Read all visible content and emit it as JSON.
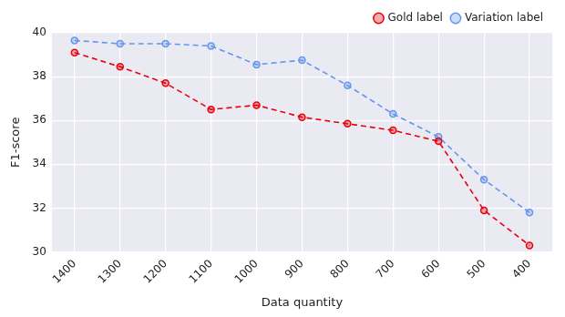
{
  "chart_data": {
    "type": "line",
    "x_label": "Data quantity",
    "y_label": "F1-score",
    "categories": [
      "1400",
      "1300",
      "1200",
      "1100",
      "1000",
      "900",
      "800",
      "700",
      "600",
      "500",
      "400"
    ],
    "series": [
      {
        "name": "Gold label",
        "color": "#e8000b",
        "marker": "circle",
        "line_style": "dashed",
        "values": [
          39.1,
          38.45,
          37.7,
          36.5,
          36.7,
          36.15,
          35.85,
          35.55,
          35.05,
          31.9,
          30.3
        ]
      },
      {
        "name": "Variation label",
        "color": "#6495ed",
        "marker": "circle",
        "line_style": "dashed",
        "values": [
          39.65,
          39.5,
          39.5,
          39.4,
          38.55,
          38.75,
          37.6,
          36.3,
          35.25,
          33.3,
          31.8
        ]
      }
    ],
    "ylim": [
      30,
      40
    ],
    "yticks": [
      30,
      32,
      34,
      36,
      38,
      40
    ],
    "grid": true,
    "legend": "upper right"
  }
}
